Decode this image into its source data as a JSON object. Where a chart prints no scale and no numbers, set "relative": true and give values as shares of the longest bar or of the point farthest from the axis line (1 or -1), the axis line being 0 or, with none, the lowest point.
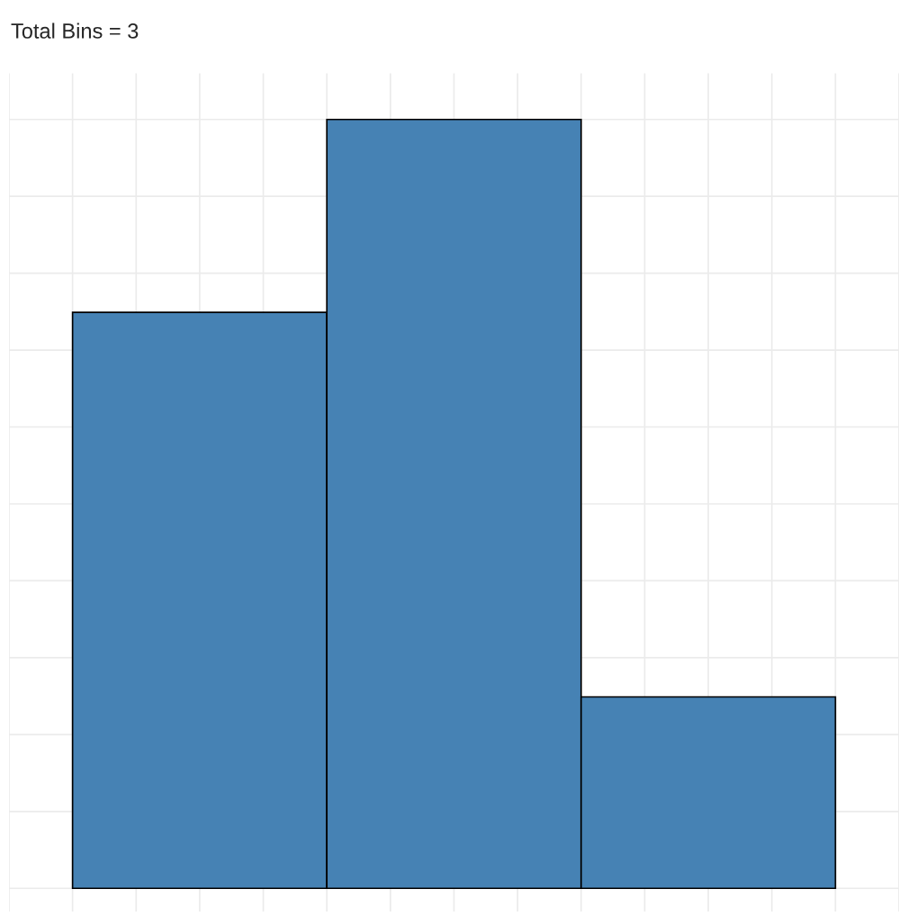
{
  "chart_data": {
    "type": "bar",
    "title": "Total Bins = 3",
    "categories": [
      null,
      null,
      null
    ],
    "values": [
      0.749,
      1,
      0.249
    ],
    "color": "#4682b4",
    "relative": true,
    "grid": true,
    "tick_labels": false
  }
}
